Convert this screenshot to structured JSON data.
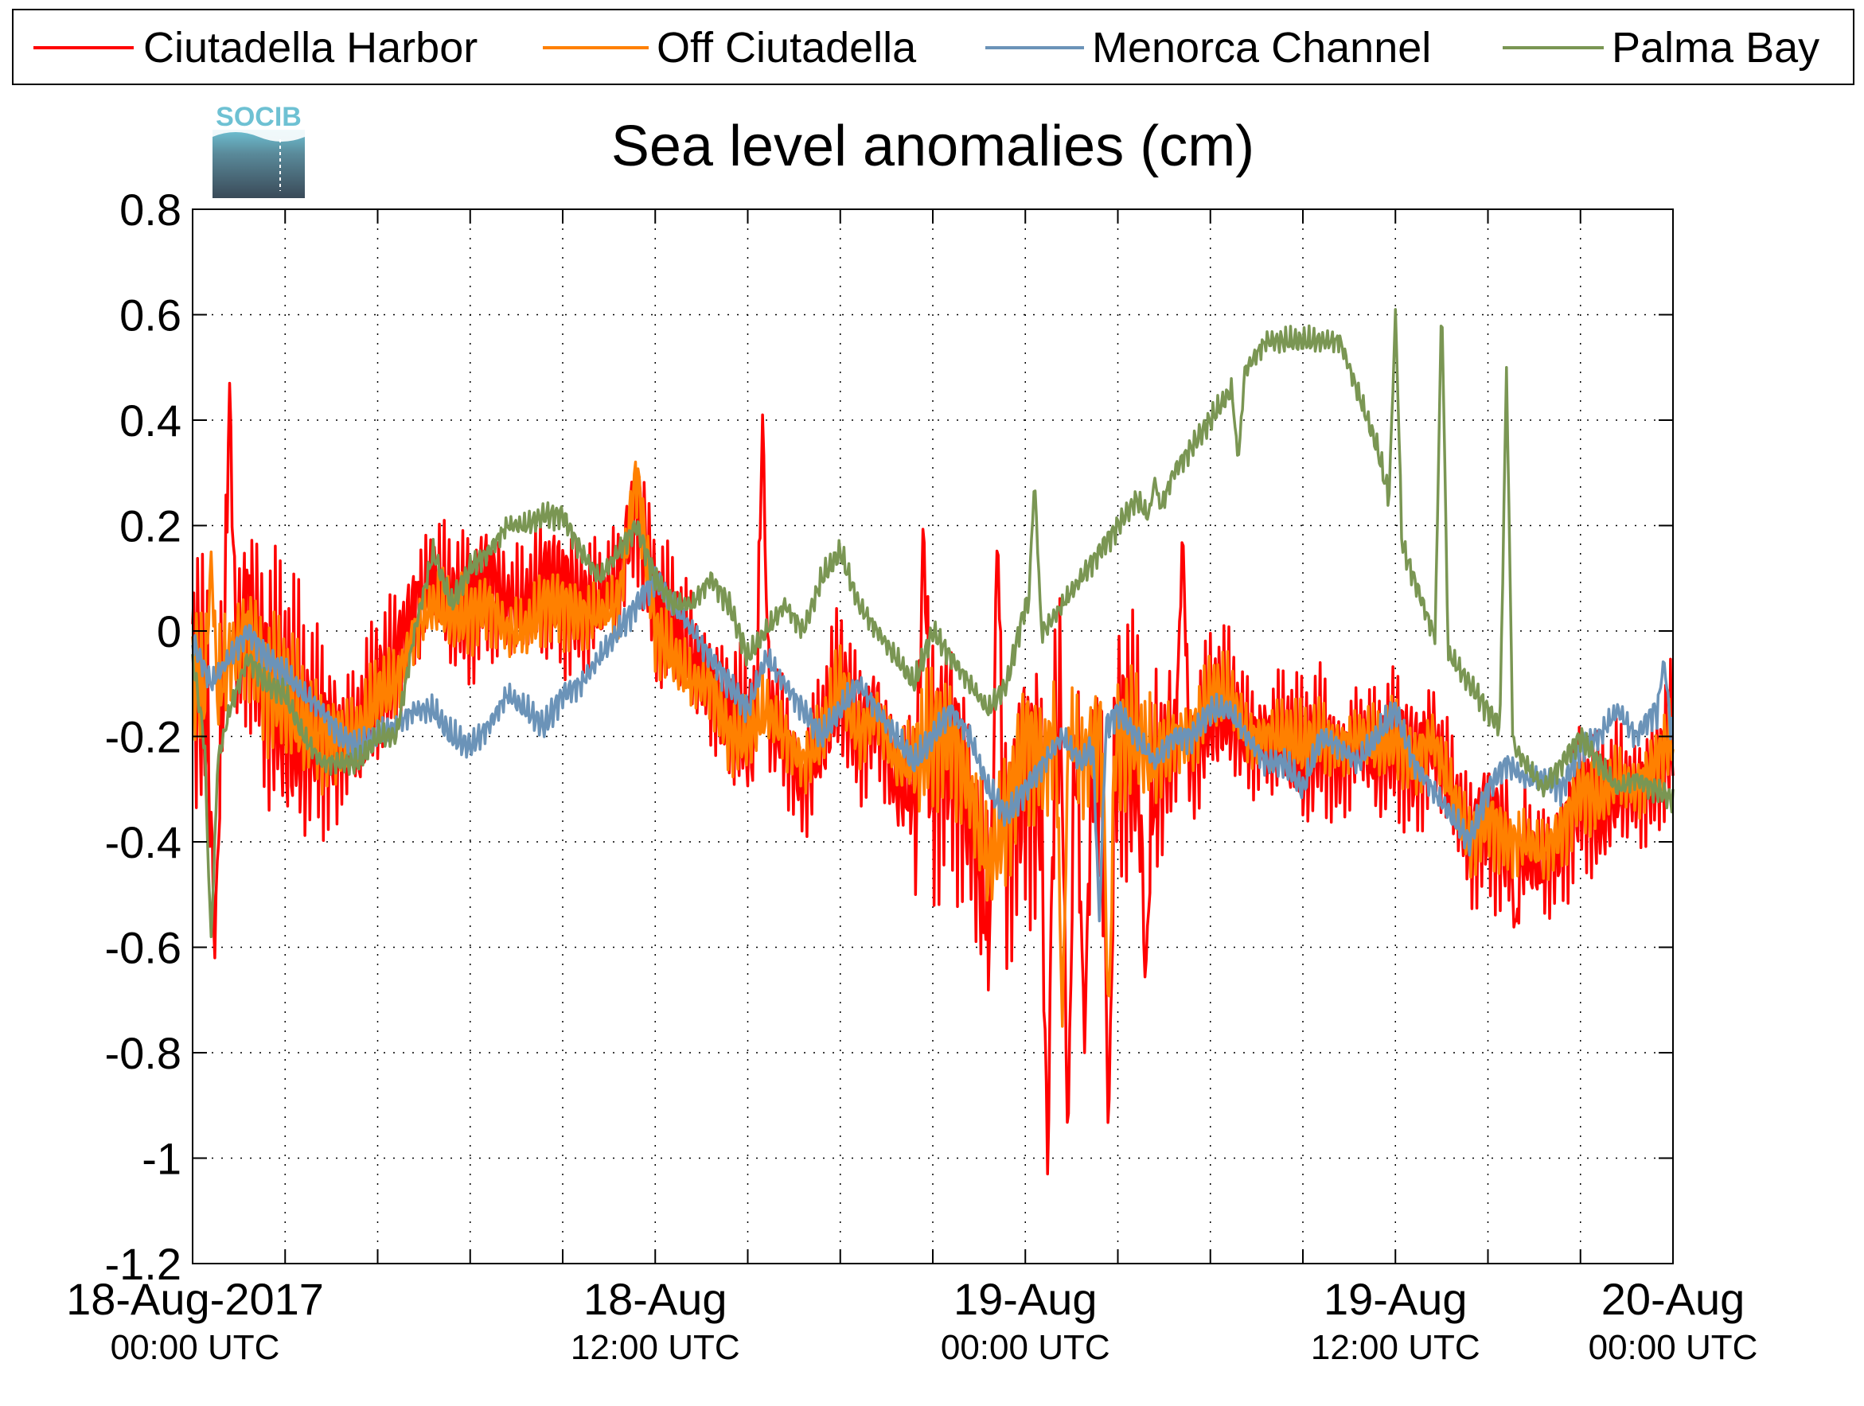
{
  "chart_data": {
    "type": "line",
    "title": "Sea level anomalies (cm)",
    "logo_text": "SOCIB",
    "xlabel": "",
    "ylabel": "",
    "ylim": [
      -1.2,
      0.8
    ],
    "yticks": [
      0.8,
      0.6,
      0.4,
      0.2,
      0,
      -0.2,
      -0.4,
      -0.6,
      -0.8,
      -1,
      -1.2
    ],
    "ytick_labels": [
      "0.8",
      "0.6",
      "0.4",
      "0.2",
      "0",
      "-0.2",
      "-0.4",
      "-0.6",
      "-0.8",
      "-1",
      "-1.2"
    ],
    "x_range_hours": [
      -5,
      75
    ],
    "x_ticks_hours": [
      0,
      5,
      10,
      15,
      20,
      25,
      30,
      35,
      40,
      45,
      50,
      55,
      60,
      65,
      70
    ],
    "x_labels": [
      {
        "hour": 0,
        "line1": "18-Aug-2017",
        "line2": "00:00 UTC"
      },
      {
        "hour": 20,
        "line1": "18-Aug",
        "line2": "12:00 UTC"
      },
      {
        "hour": 40,
        "line1": "19-Aug",
        "line2": "00:00 UTC"
      },
      {
        "hour": 60,
        "line1": "19-Aug",
        "line2": "12:00 UTC"
      },
      {
        "hour": 80,
        "line1": "20-Aug",
        "line2": "00:00 UTC"
      }
    ],
    "grid": true,
    "legend_position": "top",
    "series": [
      {
        "name": "Ciutadella Harbor",
        "color": "#ff0000",
        "x": [
          -5,
          -4,
          -3,
          -2,
          -1,
          0,
          1,
          2,
          3,
          4,
          5,
          6,
          7,
          8,
          9,
          10,
          11,
          12,
          13,
          14,
          15,
          16,
          17,
          18,
          19,
          20,
          21,
          22,
          23,
          24,
          25,
          26,
          27,
          28,
          29,
          30,
          31,
          32,
          33,
          34,
          35,
          36,
          37,
          38,
          39,
          40,
          41,
          42,
          43,
          44,
          45,
          46,
          47,
          48,
          49,
          50,
          51,
          52,
          53,
          54,
          55,
          56,
          57,
          58,
          59,
          60,
          61,
          62,
          63,
          64,
          65,
          66,
          67,
          68,
          69,
          70,
          71,
          72,
          73,
          74,
          75
        ],
        "y": [
          -0.05,
          -0.2,
          -0.1,
          0.05,
          -0.1,
          -0.15,
          -0.2,
          -0.18,
          -0.22,
          -0.2,
          -0.12,
          -0.05,
          0.05,
          0.1,
          0.05,
          0.05,
          0.1,
          0.05,
          0.05,
          0.1,
          0.08,
          0.05,
          0.05,
          0.1,
          0.25,
          0.05,
          0.0,
          -0.05,
          -0.1,
          -0.15,
          -0.2,
          -0.15,
          -0.2,
          -0.3,
          -0.2,
          -0.1,
          -0.2,
          -0.15,
          -0.3,
          -0.3,
          -0.25,
          -0.2,
          -0.35,
          -0.55,
          -0.4,
          -0.25,
          -0.3,
          -0.15,
          -0.3,
          -0.25,
          -0.2,
          -0.25,
          -0.3,
          -0.2,
          -0.25,
          -0.15,
          -0.15,
          -0.2,
          -0.2,
          -0.2,
          -0.25,
          -0.2,
          -0.25,
          -0.2,
          -0.25,
          -0.2,
          -0.25,
          -0.2,
          -0.3,
          -0.4,
          -0.35,
          -0.4,
          -0.42,
          -0.45,
          -0.4,
          -0.3,
          -0.35,
          -0.3,
          -0.3,
          -0.28,
          -0.2
        ],
        "peaks": [
          [
            -3,
            0.47
          ],
          [
            -3.8,
            -0.62
          ],
          [
            25.8,
            0.41
          ],
          [
            34.5,
            0.22
          ],
          [
            38.5,
            0.22
          ],
          [
            41.2,
            -1.03
          ],
          [
            42.3,
            -1.0
          ],
          [
            43.2,
            -0.8
          ],
          [
            44.5,
            -0.98
          ],
          [
            46.5,
            -0.68
          ],
          [
            48.5,
            0.2
          ],
          [
            66.5,
            -0.57
          ]
        ]
      },
      {
        "name": "Off Ciutadella",
        "color": "#ff8000",
        "x": [
          -5,
          -4,
          -3,
          -2,
          -1,
          0,
          1,
          2,
          3,
          4,
          5,
          6,
          7,
          8,
          9,
          10,
          11,
          12,
          13,
          14,
          15,
          16,
          17,
          18,
          19,
          20,
          21,
          22,
          23,
          24,
          25,
          26,
          27,
          28,
          29,
          30,
          31,
          32,
          33,
          34,
          35,
          36,
          37,
          38,
          39,
          40,
          41,
          42,
          43,
          44,
          45,
          46,
          47,
          48,
          49,
          50,
          51,
          52,
          53,
          54,
          55,
          56,
          57,
          58,
          59,
          60,
          61,
          62,
          63,
          64,
          65,
          66,
          67,
          68,
          69,
          70,
          71,
          72,
          73,
          74,
          75
        ],
        "y": [
          -0.05,
          -0.15,
          -0.05,
          0.0,
          -0.1,
          -0.12,
          -0.18,
          -0.2,
          -0.2,
          -0.2,
          -0.12,
          -0.1,
          0.0,
          0.05,
          0.03,
          0.03,
          0.05,
          0.0,
          0.0,
          0.05,
          0.05,
          0.03,
          0.03,
          0.05,
          0.3,
          0.0,
          -0.05,
          -0.1,
          -0.1,
          -0.2,
          -0.2,
          -0.15,
          -0.2,
          -0.25,
          -0.2,
          -0.1,
          -0.2,
          -0.15,
          -0.25,
          -0.25,
          -0.2,
          -0.2,
          -0.3,
          -0.45,
          -0.35,
          -0.2,
          -0.25,
          -0.15,
          -0.25,
          -0.2,
          -0.2,
          -0.2,
          -0.25,
          -0.2,
          -0.2,
          -0.12,
          -0.12,
          -0.2,
          -0.2,
          -0.2,
          -0.22,
          -0.2,
          -0.22,
          -0.2,
          -0.22,
          -0.2,
          -0.25,
          -0.2,
          -0.3,
          -0.4,
          -0.35,
          -0.4,
          -0.4,
          -0.42,
          -0.38,
          -0.3,
          -0.32,
          -0.28,
          -0.3,
          -0.25,
          -0.2
        ],
        "peaks": [
          [
            -4,
            0.15
          ],
          [
            42,
            -0.75
          ],
          [
            44.5,
            -0.75
          ]
        ]
      },
      {
        "name": "Menorca Channel",
        "color": "#6b93b8",
        "x": [
          -5,
          -4,
          -3,
          -2,
          -1,
          0,
          1,
          2,
          3,
          4,
          5,
          6,
          7,
          8,
          9,
          10,
          11,
          12,
          13,
          14,
          15,
          16,
          17,
          18,
          19,
          20,
          21,
          22,
          23,
          24,
          25,
          26,
          27,
          28,
          29,
          30,
          31,
          32,
          33,
          34,
          35,
          36,
          37,
          38,
          39,
          40,
          41,
          42,
          43,
          44,
          45,
          46,
          47,
          48,
          49,
          50,
          51,
          52,
          53,
          54,
          55,
          56,
          57,
          58,
          59,
          60,
          61,
          62,
          63,
          64,
          65,
          66,
          67,
          68,
          69,
          70,
          71,
          72,
          73,
          74,
          75
        ],
        "y": [
          -0.02,
          -0.1,
          -0.05,
          0.0,
          -0.05,
          -0.08,
          -0.12,
          -0.15,
          -0.2,
          -0.22,
          -0.2,
          -0.18,
          -0.15,
          -0.15,
          -0.2,
          -0.22,
          -0.18,
          -0.12,
          -0.15,
          -0.18,
          -0.12,
          -0.1,
          -0.05,
          0.0,
          0.05,
          0.1,
          0.05,
          0.0,
          -0.05,
          -0.1,
          -0.15,
          -0.05,
          -0.1,
          -0.15,
          -0.2,
          -0.15,
          -0.1,
          -0.15,
          -0.2,
          -0.25,
          -0.2,
          -0.15,
          -0.2,
          -0.3,
          -0.35,
          -0.3,
          -0.25,
          -0.2,
          -0.25,
          -0.2,
          -0.15,
          -0.2,
          -0.25,
          -0.2,
          -0.2,
          -0.15,
          -0.15,
          -0.2,
          -0.25,
          -0.25,
          -0.3,
          -0.2,
          -0.22,
          -0.25,
          -0.2,
          -0.15,
          -0.25,
          -0.3,
          -0.35,
          -0.4,
          -0.3,
          -0.25,
          -0.28,
          -0.28,
          -0.3,
          -0.22,
          -0.2,
          -0.15,
          -0.2,
          -0.15,
          -0.18
        ],
        "peaks": [
          [
            44,
            -0.55
          ],
          [
            74.5,
            -0.05
          ]
        ]
      },
      {
        "name": "Palma Bay",
        "color": "#7a9653",
        "x": [
          -5,
          -4,
          -3,
          -2,
          -1,
          0,
          1,
          2,
          3,
          4,
          5,
          6,
          7,
          8,
          9,
          10,
          11,
          12,
          13,
          14,
          15,
          16,
          17,
          18,
          19,
          20,
          21,
          22,
          23,
          24,
          25,
          26,
          27,
          28,
          29,
          30,
          31,
          32,
          33,
          34,
          35,
          36,
          37,
          38,
          39,
          40,
          41,
          42,
          43,
          44,
          45,
          46,
          47,
          48,
          49,
          50,
          51,
          52,
          53,
          54,
          55,
          56,
          57,
          58,
          59,
          60,
          61,
          62,
          63,
          64,
          65,
          66,
          67,
          68,
          69,
          70,
          71,
          72,
          73,
          74,
          75
        ],
        "y": [
          -0.05,
          -0.3,
          -0.15,
          -0.05,
          -0.1,
          -0.12,
          -0.2,
          -0.25,
          -0.25,
          -0.25,
          -0.2,
          -0.2,
          0.0,
          0.15,
          0.05,
          0.12,
          0.15,
          0.2,
          0.2,
          0.22,
          0.22,
          0.15,
          0.1,
          0.15,
          0.2,
          0.1,
          0.05,
          0.05,
          0.1,
          0.05,
          -0.05,
          0.0,
          0.05,
          0.0,
          0.1,
          0.15,
          0.05,
          0.0,
          -0.05,
          -0.1,
          0.0,
          -0.05,
          -0.1,
          -0.15,
          -0.1,
          0.05,
          0.0,
          0.05,
          0.1,
          0.15,
          0.2,
          0.25,
          0.2,
          0.3,
          0.35,
          0.4,
          0.45,
          0.5,
          0.55,
          0.55,
          0.55,
          0.55,
          0.55,
          0.45,
          0.35,
          0.2,
          0.1,
          0.0,
          -0.05,
          -0.1,
          -0.15,
          -0.2,
          -0.25,
          -0.3,
          -0.25,
          -0.2,
          -0.25,
          -0.3,
          -0.28,
          -0.3,
          -0.32
        ],
        "peaks": [
          [
            -4,
            -0.58
          ],
          [
            40.5,
            0.29
          ],
          [
            47,
            0.29
          ],
          [
            51.5,
            0.32
          ],
          [
            60,
            0.61
          ],
          [
            62.5,
            0.64
          ],
          [
            66,
            0.5
          ]
        ]
      }
    ]
  }
}
